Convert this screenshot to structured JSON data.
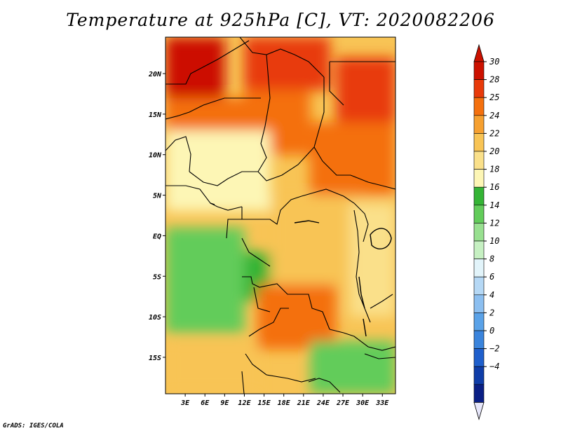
{
  "title": "Temperature at 925hPa [C], VT: 2020082206",
  "credit": "GrADS: IGES/COLA",
  "chart_data": {
    "type": "heatmap",
    "title": "Temperature at 925hPa [C], VT: 2020082206",
    "variable": "Temperature at 925hPa",
    "units": "C",
    "valid_time": "2020082206",
    "x_axis": {
      "labels": [
        "3E",
        "6E",
        "9E",
        "12E",
        "15E",
        "18E",
        "21E",
        "24E",
        "27E",
        "30E",
        "33E"
      ],
      "values": [
        3,
        6,
        9,
        12,
        15,
        18,
        21,
        24,
        27,
        30,
        33
      ],
      "range": [
        0,
        35
      ]
    },
    "y_axis": {
      "labels": [
        "20N",
        "15N",
        "10N",
        "5N",
        "EQ",
        "5S",
        "10S",
        "15S"
      ],
      "values": [
        20,
        15,
        10,
        5,
        0,
        -5,
        -10,
        -15
      ],
      "range": [
        -19.5,
        24.5
      ]
    },
    "colorbar": {
      "labels": [
        "30",
        "28",
        "25",
        "24",
        "22",
        "20",
        "18",
        "16",
        "14",
        "12",
        "10",
        "8",
        "6",
        "4",
        "2",
        "0",
        "−2",
        "−4"
      ],
      "colors": [
        "#cc1100",
        "#e83a0a",
        "#f4700e",
        "#f6a030",
        "#f8c455",
        "#fae08a",
        "#fdf6b5",
        "#34b435",
        "#62cc5a",
        "#98e090",
        "#c6f0c2",
        "#e2f4fa",
        "#b5d8f5",
        "#8cbff0",
        "#5aa2e8",
        "#3a84dc",
        "#1f5fcc",
        "#0f3da8",
        "#0a1f85"
      ],
      "top_triangle": "#cc1100",
      "bottom_triangle": "#e6e6fa"
    },
    "regions": [
      {
        "lon": [
          0,
          9
        ],
        "lat": [
          17,
          24.5
        ],
        "value": 30
      },
      {
        "lon": [
          26,
          35
        ],
        "lat": [
          14,
          22
        ],
        "value": 29
      },
      {
        "lon": [
          12,
          25
        ],
        "lat": [
          18,
          24.5
        ],
        "value": 28
      },
      {
        "lon": [
          0,
          12
        ],
        "lat": [
          13,
          17
        ],
        "value": 27
      },
      {
        "lon": [
          12,
          22
        ],
        "lat": [
          10,
          18
        ],
        "value": 25
      },
      {
        "lon": [
          22,
          35
        ],
        "lat": [
          5,
          14
        ],
        "value": 26
      },
      {
        "lon": [
          0,
          16
        ],
        "lat": [
          3,
          13
        ],
        "value": 19
      },
      {
        "lon": [
          16,
          30
        ],
        "lat": [
          -6,
          5
        ],
        "value": 23
      },
      {
        "lon": [
          0,
          12
        ],
        "lat": [
          -12,
          1
        ],
        "value": 15
      },
      {
        "lon": [
          12,
          16
        ],
        "lat": [
          -8,
          -2
        ],
        "value": 17
      },
      {
        "lon": [
          14,
          26
        ],
        "lat": [
          -14,
          -6
        ],
        "value": 26
      },
      {
        "lon": [
          28,
          35
        ],
        "lat": [
          -10,
          4
        ],
        "value": 21
      },
      {
        "lon": [
          0,
          14
        ],
        "lat": [
          -19.5,
          -13
        ],
        "value": 23
      },
      {
        "lon": [
          22,
          35
        ],
        "lat": [
          -19.5,
          -13
        ],
        "value": 15
      }
    ]
  }
}
